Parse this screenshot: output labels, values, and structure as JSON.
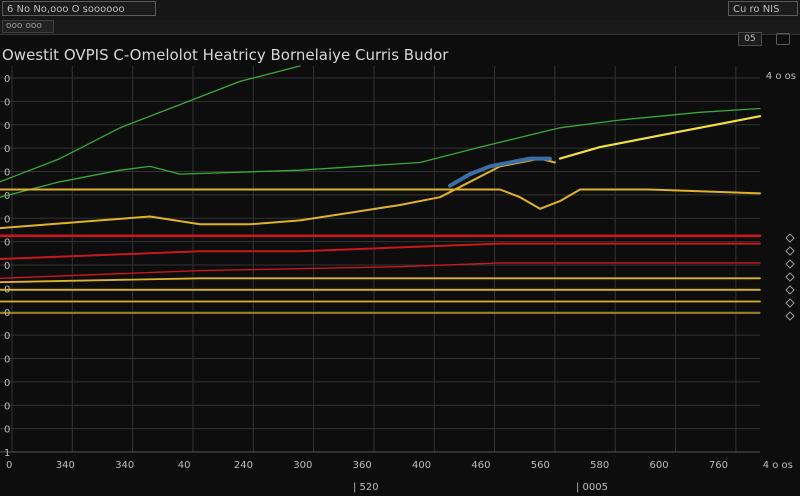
{
  "window": {
    "tab_label": "6 No No,ooo O soooooo",
    "status_label": "Cu ro NIS"
  },
  "toolbar": {
    "button_label": "ooo ooo"
  },
  "controls": {
    "zoom_label": "05"
  },
  "corner_readout": "4 o os",
  "footer": {
    "left_label": "| 520",
    "right_label": "| 0005"
  },
  "chart_data": {
    "type": "line",
    "title": "Owestit OVPIS C-Omelolot Heatricy Bornelaiye Curris Budor",
    "x_ticks": [
      "0",
      "340",
      "340",
      "40",
      "240",
      "300",
      "360",
      "400",
      "460",
      "560",
      "580",
      "600",
      "760",
      "4 o os"
    ],
    "y_ticks": [
      "0",
      "0",
      "0",
      "0",
      "0",
      "0",
      "0",
      "0",
      "0",
      "0",
      "0",
      "0",
      "0",
      "0",
      "0",
      "0",
      "1"
    ],
    "xlim": [
      0,
      760
    ],
    "ylim": [
      0,
      100
    ],
    "grid": true,
    "colors": {
      "green": "#3aa83a",
      "yellow": "#e0b22a",
      "red": "#c8181c",
      "blue": "#3b6ea5",
      "bright_yellow": "#f0e040",
      "grid": "#333333"
    },
    "series": [
      {
        "color": "green",
        "width": 1.3,
        "points": [
          [
            0,
            70
          ],
          [
            60,
            76
          ],
          [
            120,
            84
          ],
          [
            180,
            90
          ],
          [
            240,
            96
          ],
          [
            300,
            100
          ]
        ]
      },
      {
        "color": "green",
        "width": 1.3,
        "points": [
          [
            0,
            66
          ],
          [
            60,
            70
          ],
          [
            120,
            73
          ],
          [
            150,
            74
          ],
          [
            180,
            72
          ],
          [
            300,
            73
          ],
          [
            420,
            75
          ],
          [
            480,
            79
          ],
          [
            560,
            84
          ],
          [
            620,
            86
          ],
          [
            700,
            88
          ],
          [
            760,
            89
          ]
        ]
      },
      {
        "color": "yellow",
        "width": 2.0,
        "points": [
          [
            0,
            68
          ],
          [
            100,
            68
          ],
          [
            200,
            68
          ],
          [
            300,
            68
          ],
          [
            450,
            68
          ],
          [
            500,
            68
          ],
          [
            520,
            66
          ],
          [
            540,
            63
          ],
          [
            560,
            65
          ],
          [
            580,
            68
          ],
          [
            650,
            68
          ],
          [
            760,
            67
          ]
        ]
      },
      {
        "color": "yellow",
        "width": 2.0,
        "points": [
          [
            0,
            58
          ],
          [
            50,
            59
          ],
          [
            100,
            60
          ],
          [
            150,
            61
          ],
          [
            200,
            59
          ],
          [
            250,
            59
          ],
          [
            300,
            60
          ],
          [
            350,
            62
          ],
          [
            400,
            64
          ],
          [
            440,
            66
          ],
          [
            470,
            70
          ],
          [
            500,
            74
          ],
          [
            520,
            75
          ],
          [
            540,
            76
          ],
          [
            555,
            75
          ]
        ]
      },
      {
        "color": "blue",
        "width": 4.0,
        "points": [
          [
            450,
            69
          ],
          [
            470,
            72
          ],
          [
            490,
            74
          ],
          [
            510,
            75
          ],
          [
            530,
            76
          ],
          [
            550,
            76
          ]
        ]
      },
      {
        "color": "bright_yellow",
        "width": 2.2,
        "points": [
          [
            560,
            76
          ],
          [
            600,
            79
          ],
          [
            640,
            81
          ],
          [
            680,
            83
          ],
          [
            720,
            85
          ],
          [
            760,
            87
          ]
        ]
      },
      {
        "color": "red",
        "width": 2.6,
        "points": [
          [
            0,
            56
          ],
          [
            760,
            56
          ]
        ]
      },
      {
        "color": "red",
        "width": 2.0,
        "points": [
          [
            0,
            50
          ],
          [
            100,
            51
          ],
          [
            200,
            52
          ],
          [
            300,
            52
          ],
          [
            400,
            53
          ],
          [
            500,
            54
          ],
          [
            560,
            54
          ],
          [
            760,
            54
          ]
        ]
      },
      {
        "color": "red",
        "width": 1.4,
        "points": [
          [
            0,
            45
          ],
          [
            200,
            47
          ],
          [
            400,
            48
          ],
          [
            500,
            49
          ],
          [
            760,
            49
          ]
        ]
      },
      {
        "color": "yellow",
        "width": 1.8,
        "points": [
          [
            0,
            44
          ],
          [
            200,
            45
          ],
          [
            400,
            45
          ],
          [
            600,
            45
          ],
          [
            760,
            45
          ]
        ]
      },
      {
        "color": "yellow",
        "width": 1.8,
        "points": [
          [
            0,
            42
          ],
          [
            760,
            42
          ]
        ]
      },
      {
        "color": "yellow",
        "width": 1.8,
        "points": [
          [
            0,
            39
          ],
          [
            760,
            39
          ]
        ]
      },
      {
        "color": "yellow",
        "width": 1.2,
        "points": [
          [
            0,
            36
          ],
          [
            760,
            36
          ]
        ]
      }
    ]
  }
}
